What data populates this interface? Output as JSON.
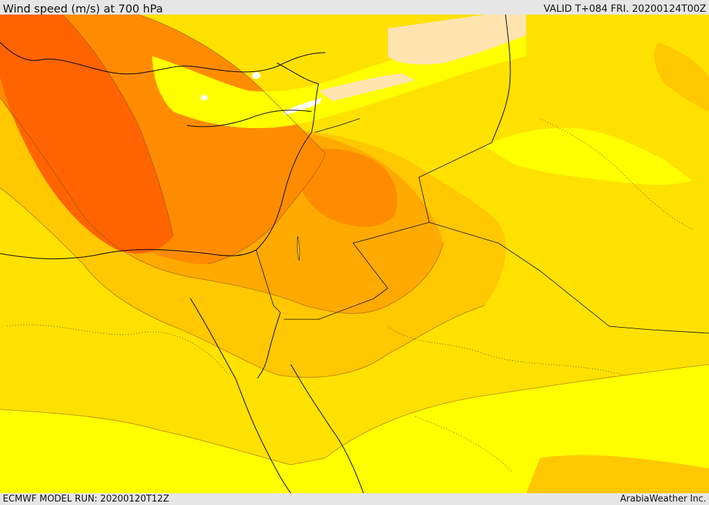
{
  "header": {
    "title": "Wind speed (m/s) at 700 hPa",
    "valid": "VALID T+084 FRI. 20200124T00Z"
  },
  "footer": {
    "model_run": "ECMWF MODEL RUN: 20200120T12Z",
    "credit": "ArabiaWeather Inc."
  },
  "colors": {
    "band_lightest": "#ffff00",
    "band_light": "#ffe100",
    "band_mid": "#ffc800",
    "band_orange": "#ffaa00",
    "band_darkorange": "#ff8c00",
    "band_max": "#ff6400",
    "calm_pale": "#ffe4b0",
    "calm_white": "#ffffff"
  }
}
